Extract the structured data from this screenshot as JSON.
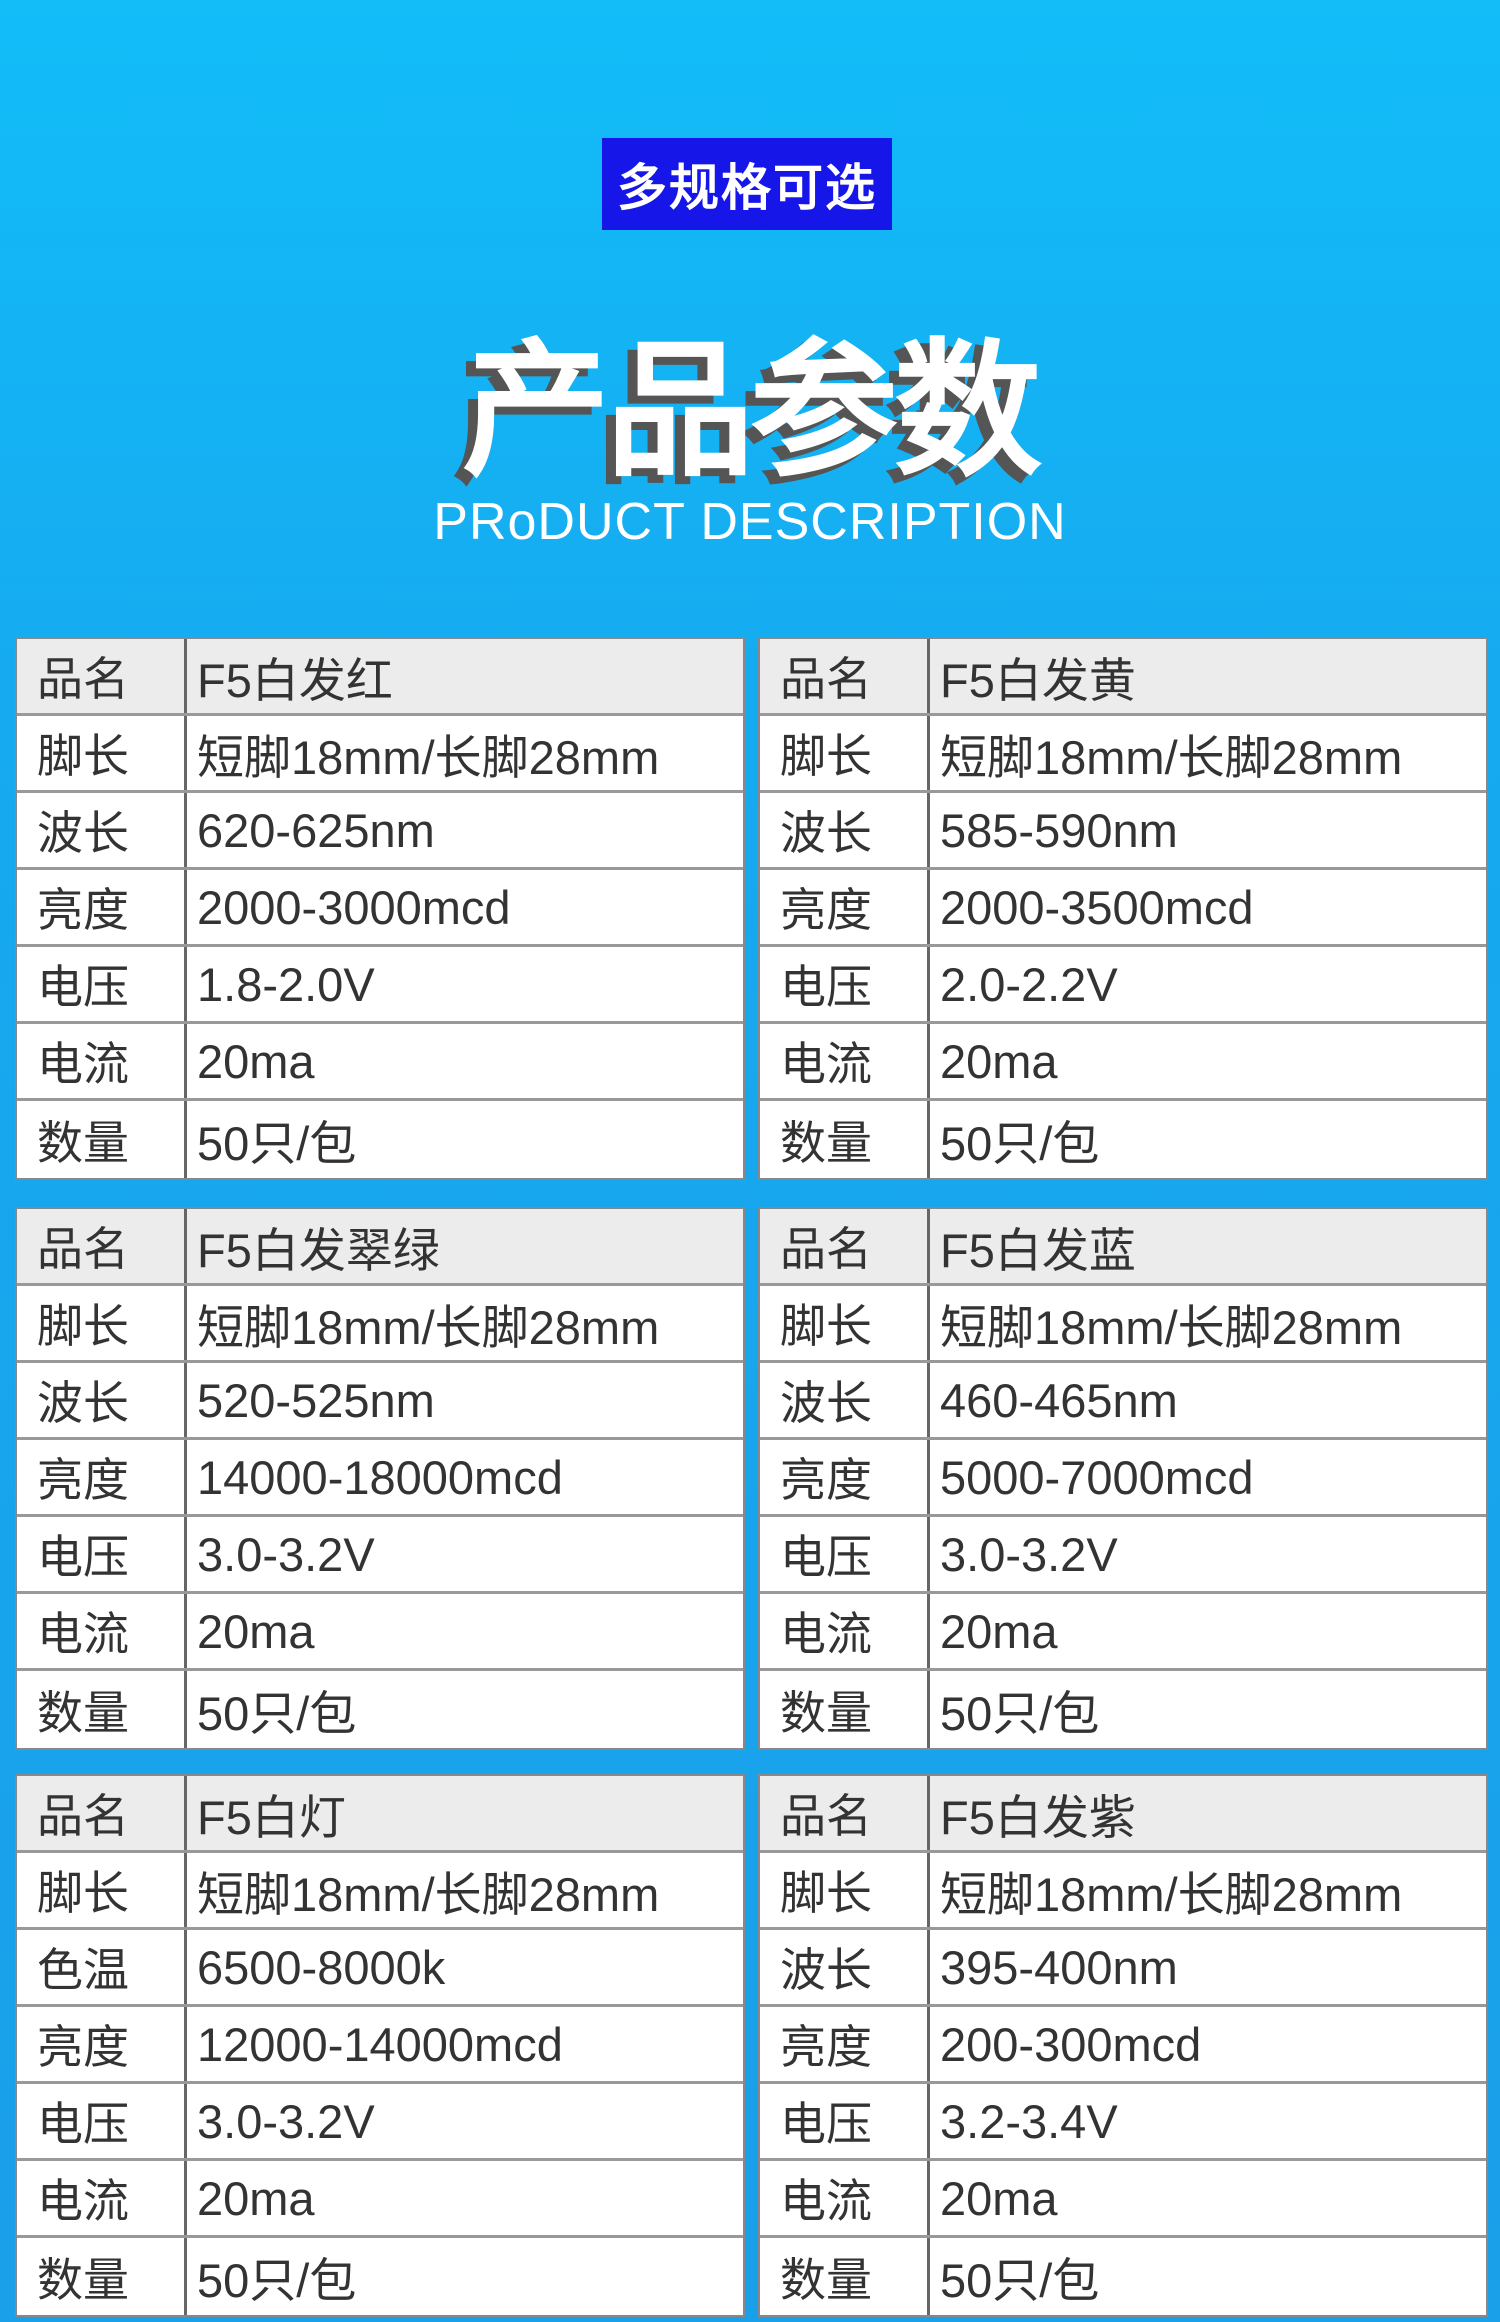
{
  "header": {
    "badge": "多规格可选",
    "title": "产品参数",
    "subtitle": "PRoDUCT DESCRIPTION"
  },
  "colors": {
    "background": "#16aaf0",
    "badge": "#1616e8",
    "header_row": "#ececec"
  },
  "tables": [
    {
      "rows": [
        [
          "品名",
          "F5白发红"
        ],
        [
          "脚长",
          "短脚18mm/长脚28mm"
        ],
        [
          "波长",
          "620-625nm"
        ],
        [
          "亮度",
          "2000-3000mcd"
        ],
        [
          "电压",
          "1.8-2.0V"
        ],
        [
          "电流",
          "20ma"
        ],
        [
          "数量",
          "50只/包"
        ]
      ]
    },
    {
      "rows": [
        [
          "品名",
          "F5白发黄"
        ],
        [
          "脚长",
          "短脚18mm/长脚28mm"
        ],
        [
          "波长",
          "585-590nm"
        ],
        [
          "亮度",
          "2000-3500mcd"
        ],
        [
          "电压",
          "2.0-2.2V"
        ],
        [
          "电流",
          "20ma"
        ],
        [
          "数量",
          "50只/包"
        ]
      ]
    },
    {
      "rows": [
        [
          "品名",
          "F5白发翠绿"
        ],
        [
          "脚长",
          "短脚18mm/长脚28mm"
        ],
        [
          "波长",
          "520-525nm"
        ],
        [
          "亮度",
          "14000-18000mcd"
        ],
        [
          "电压",
          "3.0-3.2V"
        ],
        [
          "电流",
          "20ma"
        ],
        [
          "数量",
          "50只/包"
        ]
      ]
    },
    {
      "rows": [
        [
          "品名",
          "F5白发蓝"
        ],
        [
          "脚长",
          "短脚18mm/长脚28mm"
        ],
        [
          "波长",
          "460-465nm"
        ],
        [
          "亮度",
          "5000-7000mcd"
        ],
        [
          "电压",
          "3.0-3.2V"
        ],
        [
          "电流",
          "20ma"
        ],
        [
          "数量",
          "50只/包"
        ]
      ]
    },
    {
      "rows": [
        [
          "品名",
          "F5白灯"
        ],
        [
          "脚长",
          "短脚18mm/长脚28mm"
        ],
        [
          "色温",
          "6500-8000k"
        ],
        [
          "亮度",
          "12000-14000mcd"
        ],
        [
          "电压",
          "3.0-3.2V"
        ],
        [
          "电流",
          "20ma"
        ],
        [
          "数量",
          "50只/包"
        ]
      ]
    },
    {
      "rows": [
        [
          "品名",
          "F5白发紫"
        ],
        [
          "脚长",
          "短脚18mm/长脚28mm"
        ],
        [
          "波长",
          "395-400nm"
        ],
        [
          "亮度",
          "200-300mcd"
        ],
        [
          "电压",
          "3.2-3.4V"
        ],
        [
          "电流",
          "20ma"
        ],
        [
          "数量",
          "50只/包"
        ]
      ]
    }
  ]
}
